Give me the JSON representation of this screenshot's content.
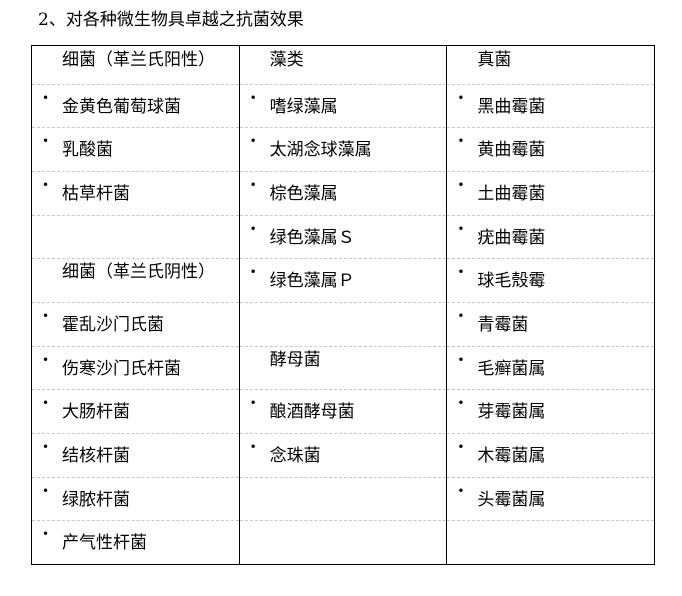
{
  "title": "2、对各种微生物具卓越之抗菌效果",
  "columns": [
    {
      "header": "细菌（革兰氏阳性）",
      "cells": [
        {
          "text": "金黄色葡萄球菌",
          "bullet": true
        },
        {
          "text": "乳酸菌",
          "bullet": true
        },
        {
          "text": "枯草杆菌",
          "bullet": true
        },
        {
          "text": "",
          "bullet": false
        },
        {
          "text": "细菌（革兰氏阴性）",
          "bullet": false,
          "sub": true
        },
        {
          "text": "霍乱沙门氏菌",
          "bullet": true
        },
        {
          "text": "伤寒沙门氏杆菌",
          "bullet": true
        },
        {
          "text": "大肠杆菌",
          "bullet": true
        },
        {
          "text": "结核杆菌",
          "bullet": true
        },
        {
          "text": "绿脓杆菌",
          "bullet": true
        },
        {
          "text": "产气性杆菌",
          "bullet": true
        }
      ]
    },
    {
      "header": "藻类",
      "cells": [
        {
          "text": "嗜绿藻属",
          "bullet": true
        },
        {
          "text": "太湖念球藻属",
          "bullet": true
        },
        {
          "text": "棕色藻属",
          "bullet": true
        },
        {
          "text": "绿色藻属Ｓ",
          "bullet": true
        },
        {
          "text": "绿色藻属Ｐ",
          "bullet": true
        },
        {
          "text": "",
          "bullet": false
        },
        {
          "text": "酵母菌",
          "bullet": false,
          "sub": true
        },
        {
          "text": "酿酒酵母菌",
          "bullet": true
        },
        {
          "text": "念珠菌",
          "bullet": true
        },
        {
          "text": "",
          "bullet": false
        },
        {
          "text": "",
          "bullet": false
        }
      ]
    },
    {
      "header": "真菌",
      "cells": [
        {
          "text": "黑曲霉菌",
          "bullet": true
        },
        {
          "text": "黄曲霉菌",
          "bullet": true
        },
        {
          "text": "土曲霉菌",
          "bullet": true
        },
        {
          "text": "疣曲霉菌",
          "bullet": true
        },
        {
          "text": "球毛殼霉",
          "bullet": true
        },
        {
          "text": "青霉菌",
          "bullet": true
        },
        {
          "text": "毛癣菌属",
          "bullet": true
        },
        {
          "text": "芽霉菌属",
          "bullet": true
        },
        {
          "text": "木霉菌属",
          "bullet": true
        },
        {
          "text": "头霉菌属",
          "bullet": true
        },
        {
          "text": "",
          "bullet": false
        }
      ]
    }
  ],
  "bullet_glyph": "•"
}
